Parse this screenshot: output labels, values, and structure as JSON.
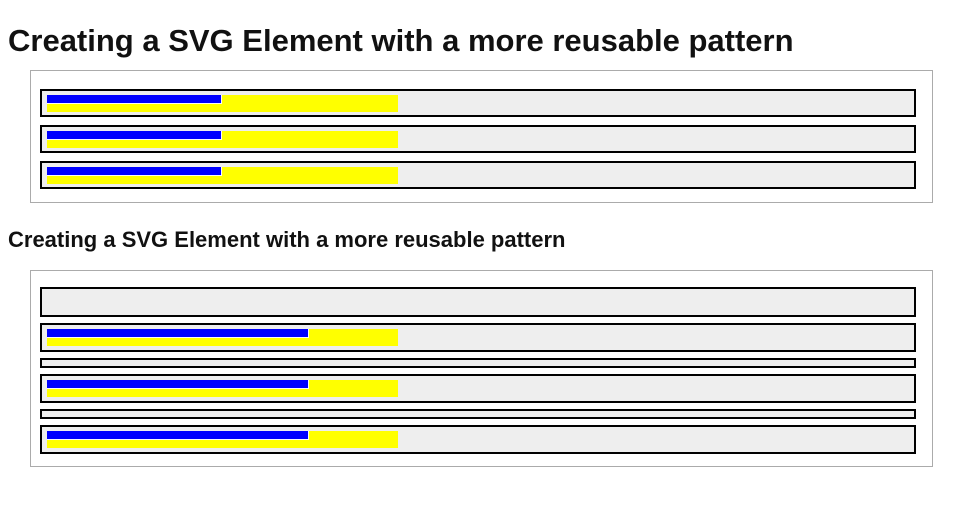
{
  "colors": {
    "bar_fill": "#0000ff",
    "bar_background": "#ffff00",
    "row_background": "#eeeeee",
    "row_border": "#000000",
    "panel_border": "#ababab",
    "heading_text": "#111111",
    "page_background": "#ffffff"
  },
  "sections": [
    {
      "heading": "Creating a SVG Element with a more reusable pattern",
      "rows": [
        {
          "type": "bar",
          "blue_width": 175,
          "yellow_width": 351
        },
        {
          "type": "bar",
          "blue_width": 175,
          "yellow_width": 351
        },
        {
          "type": "bar",
          "blue_width": 175,
          "yellow_width": 351
        }
      ]
    },
    {
      "heading": "Creating a SVG Element with a more reusable pattern",
      "rows": [
        {
          "type": "empty_tall"
        },
        {
          "type": "bar",
          "blue_width": 262,
          "yellow_width": 351
        },
        {
          "type": "empty_thin"
        },
        {
          "type": "bar",
          "blue_width": 262,
          "yellow_width": 351
        },
        {
          "type": "empty_thin"
        },
        {
          "type": "bar",
          "blue_width": 262,
          "yellow_width": 351
        }
      ]
    }
  ]
}
